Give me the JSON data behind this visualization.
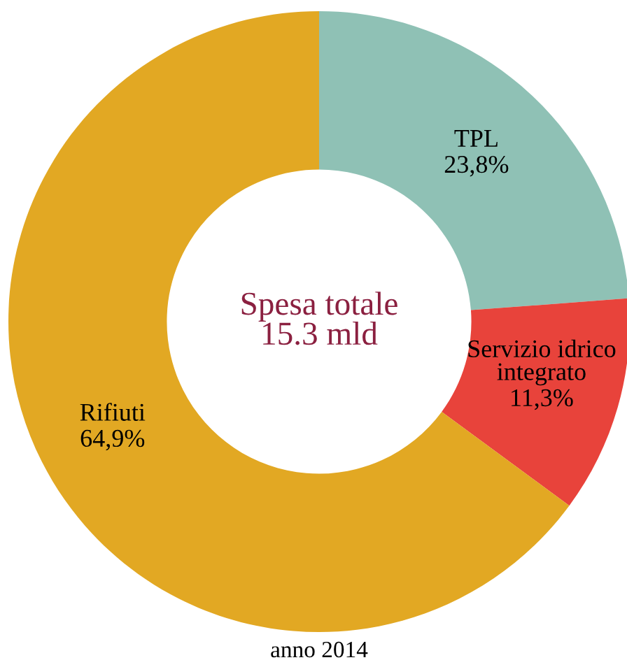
{
  "chart_data": {
    "type": "donut",
    "categories": [
      "TPL",
      "Servizio idrico integrato",
      "Rifiuti"
    ],
    "values": [
      23.8,
      11.3,
      64.9
    ],
    "colors": [
      "#8fc1b5",
      "#e8433b",
      "#e2a823"
    ],
    "value_labels": [
      "23,8%",
      "11,3%",
      "64,9%"
    ],
    "annotations": [
      "Spesa totale\n15.3 mld",
      "anno 2014"
    ],
    "legend": false
  }
}
